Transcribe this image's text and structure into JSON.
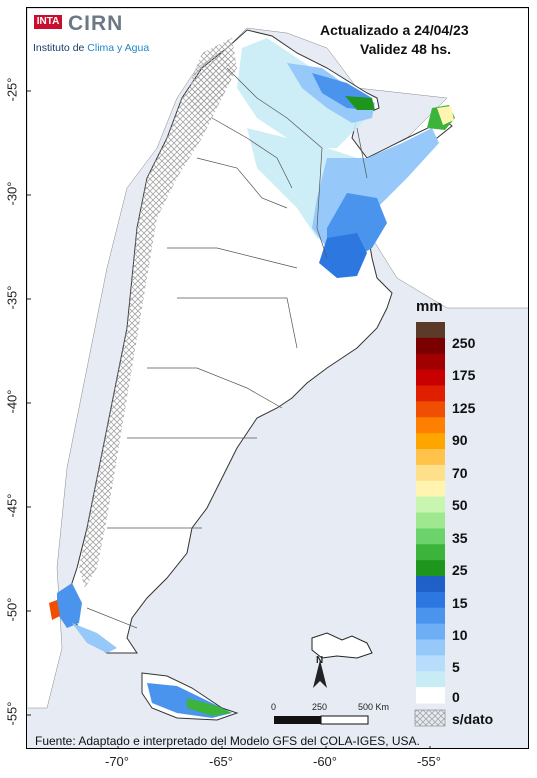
{
  "header": {
    "title": "Actualizado a 24/04/23",
    "subtitle": "Validez 48 hs."
  },
  "logo": {
    "badge": "INTA",
    "name": "CIRN",
    "tagline_prefix": "Instituto de ",
    "tagline_accent": "Clima y Agua"
  },
  "axes": {
    "latitudes": [
      "-25°",
      "-30°",
      "-35°",
      "-40°",
      "-45°",
      "-50°",
      "-55°"
    ],
    "longitudes": [
      "-70°",
      "-65°",
      "-60°",
      "-55°"
    ]
  },
  "legend": {
    "unit": "mm",
    "labels": [
      "250",
      "175",
      "125",
      "90",
      "70",
      "50",
      "35",
      "25",
      "15",
      "10",
      "5",
      "0"
    ],
    "no_data_label": "s/dato",
    "colors": [
      "#5b3a29",
      "#7a0000",
      "#a00000",
      "#c80000",
      "#e01e00",
      "#f04e00",
      "#ff7f00",
      "#ffa500",
      "#ffc24a",
      "#ffe08a",
      "#fff5b0",
      "#c8f5b0",
      "#a0e890",
      "#6cd36c",
      "#3cb43c",
      "#1e961e",
      "#1f5fc8",
      "#2d78e0",
      "#4a94ee",
      "#6eaef5",
      "#96c8fa",
      "#b8dcfc",
      "#c8ecf5",
      "#ffffff"
    ]
  },
  "scale_bar": {
    "labels": [
      "0",
      "250",
      "500 Km"
    ],
    "north": "N"
  },
  "source": "Fuente: Adaptado e interpretado del Modelo GFS del COLA-IGES, USA."
}
